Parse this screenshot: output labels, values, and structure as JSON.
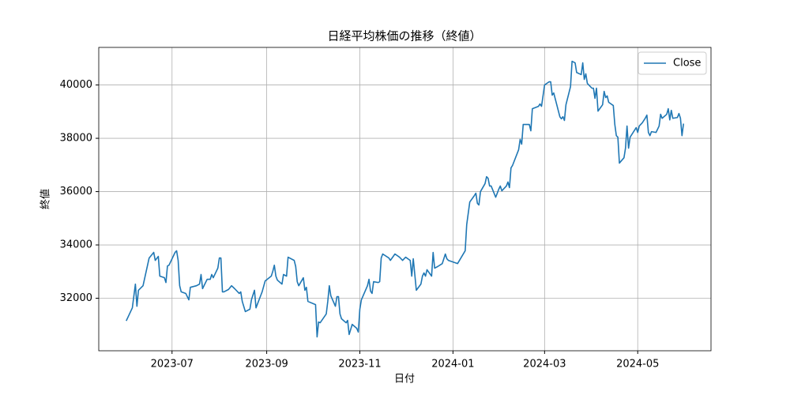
{
  "chart_data": {
    "type": "line",
    "title": "日経平均株価の推移（終値）",
    "xlabel": "日付",
    "ylabel": "終値",
    "x": [
      "2023-06-01",
      "2023-06-05",
      "2023-06-07",
      "2023-06-08",
      "2023-06-09",
      "2023-06-12",
      "2023-06-16",
      "2023-06-19",
      "2023-06-20",
      "2023-06-22",
      "2023-06-23",
      "2023-06-26",
      "2023-06-27",
      "2023-06-28",
      "2023-06-29",
      "2023-07-03",
      "2023-07-04",
      "2023-07-05",
      "2023-07-06",
      "2023-07-07",
      "2023-07-10",
      "2023-07-12",
      "2023-07-13",
      "2023-07-17",
      "2023-07-19",
      "2023-07-20",
      "2023-07-21",
      "2023-07-24",
      "2023-07-26",
      "2023-07-27",
      "2023-07-28",
      "2023-07-31",
      "2023-08-01",
      "2023-08-02",
      "2023-08-03",
      "2023-08-04",
      "2023-08-07",
      "2023-08-09",
      "2023-08-11",
      "2023-08-14",
      "2023-08-15",
      "2023-08-16",
      "2023-08-18",
      "2023-08-21",
      "2023-08-22",
      "2023-08-24",
      "2023-08-25",
      "2023-08-28",
      "2023-08-29",
      "2023-08-31",
      "2023-09-04",
      "2023-09-05",
      "2023-09-06",
      "2023-09-07",
      "2023-09-08",
      "2023-09-11",
      "2023-09-12",
      "2023-09-14",
      "2023-09-15",
      "2023-09-19",
      "2023-09-20",
      "2023-09-21",
      "2023-09-22",
      "2023-09-25",
      "2023-09-26",
      "2023-09-27",
      "2023-09-28",
      "2023-10-03",
      "2023-10-04",
      "2023-10-05",
      "2023-10-06",
      "2023-10-10",
      "2023-10-11",
      "2023-10-12",
      "2023-10-13",
      "2023-10-16",
      "2023-10-17",
      "2023-10-18",
      "2023-10-19",
      "2023-10-20",
      "2023-10-23",
      "2023-10-24",
      "2023-10-25",
      "2023-10-27",
      "2023-10-30",
      "2023-10-31",
      "2023-11-01",
      "2023-11-02",
      "2023-11-06",
      "2023-11-07",
      "2023-11-08",
      "2023-11-09",
      "2023-11-10",
      "2023-11-13",
      "2023-11-14",
      "2023-11-15",
      "2023-11-16",
      "2023-11-20",
      "2023-11-21",
      "2023-11-24",
      "2023-11-27",
      "2023-11-29",
      "2023-12-01",
      "2023-12-04",
      "2023-12-05",
      "2023-12-06",
      "2023-12-08",
      "2023-12-11",
      "2023-12-12",
      "2023-12-13",
      "2023-12-14",
      "2023-12-15",
      "2023-12-18",
      "2023-12-19",
      "2023-12-20",
      "2023-12-22",
      "2023-12-25",
      "2023-12-27",
      "2023-12-28",
      "2023-12-29",
      "2024-01-04",
      "2024-01-09",
      "2024-01-10",
      "2024-01-12",
      "2024-01-15",
      "2024-01-16",
      "2024-01-17",
      "2024-01-18",
      "2024-01-19",
      "2024-01-22",
      "2024-01-23",
      "2024-01-24",
      "2024-01-25",
      "2024-01-26",
      "2024-01-29",
      "2024-01-30",
      "2024-01-31",
      "2024-02-01",
      "2024-02-02",
      "2024-02-05",
      "2024-02-06",
      "2024-02-07",
      "2024-02-08",
      "2024-02-09",
      "2024-02-13",
      "2024-02-14",
      "2024-02-15",
      "2024-02-16",
      "2024-02-19",
      "2024-02-20",
      "2024-02-21",
      "2024-02-22",
      "2024-02-26",
      "2024-02-27",
      "2024-02-28",
      "2024-03-01",
      "2024-03-04",
      "2024-03-05",
      "2024-03-06",
      "2024-03-07",
      "2024-03-11",
      "2024-03-12",
      "2024-03-13",
      "2024-03-14",
      "2024-03-15",
      "2024-03-18",
      "2024-03-19",
      "2024-03-21",
      "2024-03-22",
      "2024-03-25",
      "2024-03-26",
      "2024-03-27",
      "2024-03-28",
      "2024-03-29",
      "2024-04-01",
      "2024-04-02",
      "2024-04-03",
      "2024-04-04",
      "2024-04-05",
      "2024-04-08",
      "2024-04-09",
      "2024-04-10",
      "2024-04-11",
      "2024-04-12",
      "2024-04-15",
      "2024-04-16",
      "2024-04-17",
      "2024-04-18",
      "2024-04-19",
      "2024-04-22",
      "2024-04-23",
      "2024-04-24",
      "2024-04-25",
      "2024-04-26",
      "2024-04-30",
      "2024-05-01",
      "2024-05-02",
      "2024-05-04",
      "2024-05-06",
      "2024-05-07",
      "2024-05-08",
      "2024-05-09",
      "2024-05-10",
      "2024-05-13",
      "2024-05-15",
      "2024-05-16",
      "2024-05-17",
      "2024-05-20",
      "2024-05-21",
      "2024-05-22",
      "2024-05-23",
      "2024-05-24",
      "2024-05-27",
      "2024-05-28",
      "2024-05-29",
      "2024-05-30",
      "2024-05-31"
    ],
    "series": [
      {
        "name": "Close",
        "color": "#1f77b4",
        "values": [
          31150,
          31640,
          32530,
          31700,
          32300,
          32470,
          33510,
          33720,
          33420,
          33570,
          32830,
          32770,
          32590,
          33210,
          33240,
          33720,
          33780,
          33420,
          32470,
          32240,
          32180,
          31940,
          32410,
          32470,
          32530,
          32890,
          32360,
          32710,
          32710,
          32890,
          32770,
          33130,
          33510,
          33510,
          32240,
          32240,
          32330,
          32470,
          32360,
          32180,
          32240,
          31880,
          31500,
          31590,
          31940,
          32300,
          31640,
          32090,
          32240,
          32650,
          32830,
          33010,
          33240,
          32830,
          32680,
          32530,
          32890,
          32830,
          33540,
          33420,
          33190,
          32620,
          32470,
          32770,
          32300,
          32410,
          31880,
          31760,
          30550,
          31110,
          31080,
          31410,
          31880,
          32470,
          32090,
          31700,
          32060,
          32060,
          31410,
          31230,
          31080,
          31170,
          30640,
          31020,
          30870,
          30730,
          31590,
          31940,
          32470,
          32710,
          32270,
          32180,
          32620,
          32590,
          32620,
          33510,
          33660,
          33510,
          33420,
          33660,
          33540,
          33420,
          33540,
          33420,
          32830,
          33480,
          32300,
          32530,
          32830,
          32950,
          32830,
          33070,
          32830,
          33720,
          33130,
          33190,
          33300,
          33660,
          33480,
          33420,
          33300,
          33780,
          34760,
          35610,
          35850,
          35940,
          35560,
          35500,
          36000,
          36300,
          36560,
          36500,
          36210,
          36210,
          35790,
          35940,
          36090,
          36210,
          36030,
          36210,
          36360,
          36150,
          36890,
          36980,
          37570,
          37960,
          37780,
          38520,
          38520,
          38520,
          38280,
          39110,
          39200,
          39290,
          39200,
          40000,
          40120,
          40120,
          39620,
          39700,
          38810,
          38730,
          38810,
          38670,
          39260,
          39940,
          40890,
          40830,
          40470,
          40390,
          40830,
          40210,
          40420,
          40060,
          39880,
          39880,
          39500,
          39880,
          39020,
          39260,
          39760,
          39530,
          39590,
          39350,
          39230,
          38520,
          38100,
          38040,
          37070,
          37270,
          37630,
          38460,
          37630,
          38040,
          38400,
          38220,
          38460,
          38580,
          38760,
          38870,
          38220,
          38100,
          38250,
          38220,
          38460,
          38900,
          38750,
          38900,
          39110,
          38690,
          39050,
          38750,
          38780,
          38930,
          38750,
          38100,
          38550
        ]
      }
    ],
    "xlim": [
      "2023-05-14",
      "2024-06-18"
    ],
    "xticks": [
      {
        "value": "2023-07-01",
        "label": "2023-07"
      },
      {
        "value": "2023-09-01",
        "label": "2023-09"
      },
      {
        "value": "2023-11-01",
        "label": "2023-11"
      },
      {
        "value": "2024-01-01",
        "label": "2024-01"
      },
      {
        "value": "2024-03-01",
        "label": "2024-03"
      },
      {
        "value": "2024-05-01",
        "label": "2024-05"
      }
    ],
    "ylim": [
      30030,
      41410
    ],
    "yticks": [
      32000,
      34000,
      36000,
      38000,
      40000
    ],
    "grid": true,
    "legend": "upper right"
  }
}
